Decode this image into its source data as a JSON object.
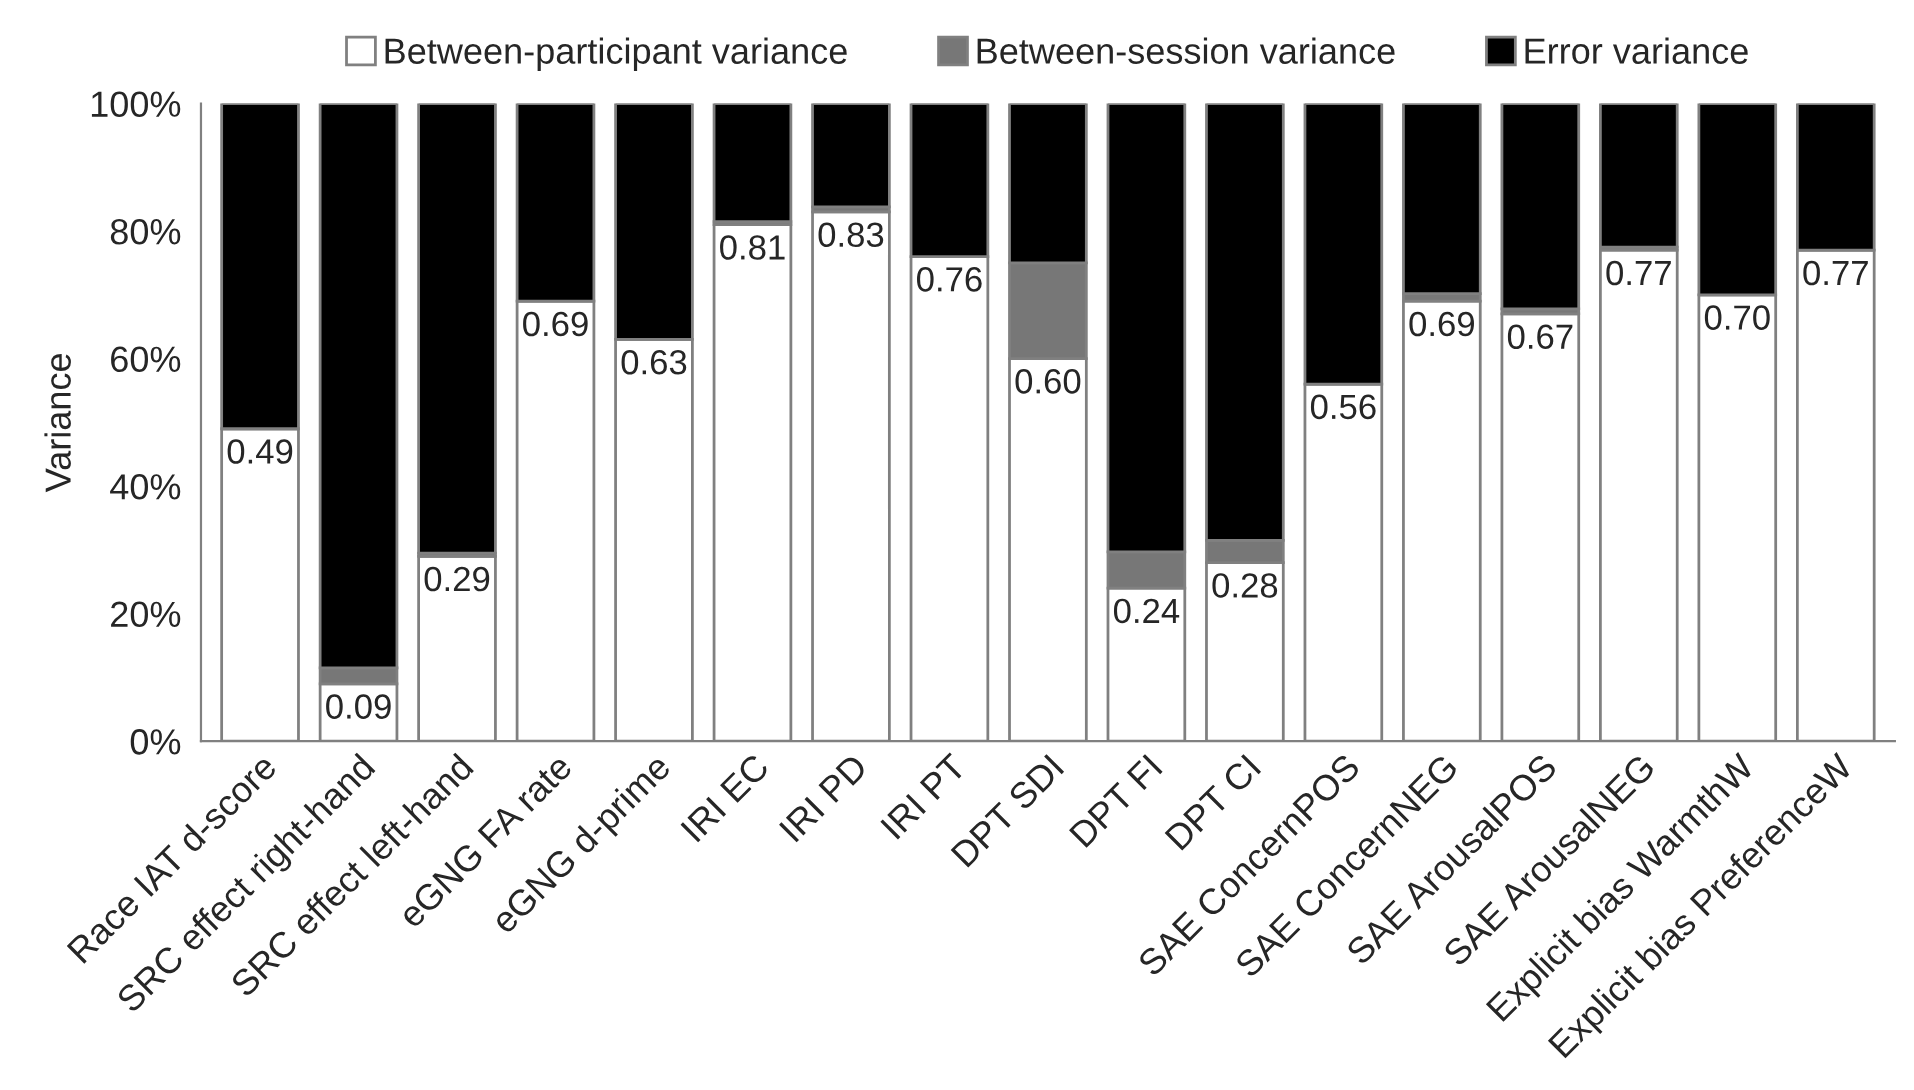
{
  "chart_data": {
    "type": "bar",
    "stacked": true,
    "ylabel": "Variance",
    "categories": [
      "Race IAT d-score",
      "SRC effect right-hand",
      "SRC effect left-hand",
      "eGNG FA rate",
      "eGNG d-prime",
      "IRI EC",
      "IRI PD",
      "IRI PT",
      "DPT SDI",
      "DPT FI",
      "DPT CI",
      "SAE ConcernPOS",
      "SAE ConcernNEG",
      "SAE ArousalPOS",
      "SAE ArousalNEG",
      "Explicit bias WarmthW",
      "Explicit bias PreferenceW"
    ],
    "series": [
      {
        "name": "Between-participant variance",
        "color": "#ffffff",
        "values": [
          0.49,
          0.09,
          0.29,
          0.69,
          0.63,
          0.81,
          0.83,
          0.76,
          0.6,
          0.24,
          0.28,
          0.56,
          0.69,
          0.67,
          0.77,
          0.7,
          0.77
        ],
        "value_labels": [
          "0.49",
          "0.09",
          "0.29",
          "0.69",
          "0.63",
          "0.81",
          "0.83",
          "0.76",
          "0.60",
          "0.24",
          "0.28",
          "0.56",
          "0.69",
          "0.67",
          "0.77",
          "0.70",
          "0.77"
        ]
      },
      {
        "name": "Between-session variance",
        "color": "#777777",
        "values": [
          0,
          0.025,
          0.005,
          0,
          0,
          0.005,
          0.008,
          0,
          0.15,
          0.057,
          0.035,
          0,
          0.012,
          0.008,
          0.005,
          0,
          0
        ]
      },
      {
        "name": "Error variance",
        "color": "#000000",
        "values": [
          0.51,
          0.885,
          0.705,
          0.31,
          0.37,
          0.185,
          0.162,
          0.24,
          0.25,
          0.703,
          0.685,
          0.44,
          0.298,
          0.322,
          0.225,
          0.3,
          0.23
        ]
      }
    ],
    "ylim": [
      0,
      1
    ],
    "yticks": [
      {
        "value": 0,
        "label": "0%"
      },
      {
        "value": 0.2,
        "label": "20%"
      },
      {
        "value": 0.4,
        "label": "40%"
      },
      {
        "value": 0.6,
        "label": "60%"
      },
      {
        "value": 0.8,
        "label": "80%"
      },
      {
        "value": 1,
        "label": "100%"
      }
    ],
    "grid": false,
    "legend": "top"
  }
}
